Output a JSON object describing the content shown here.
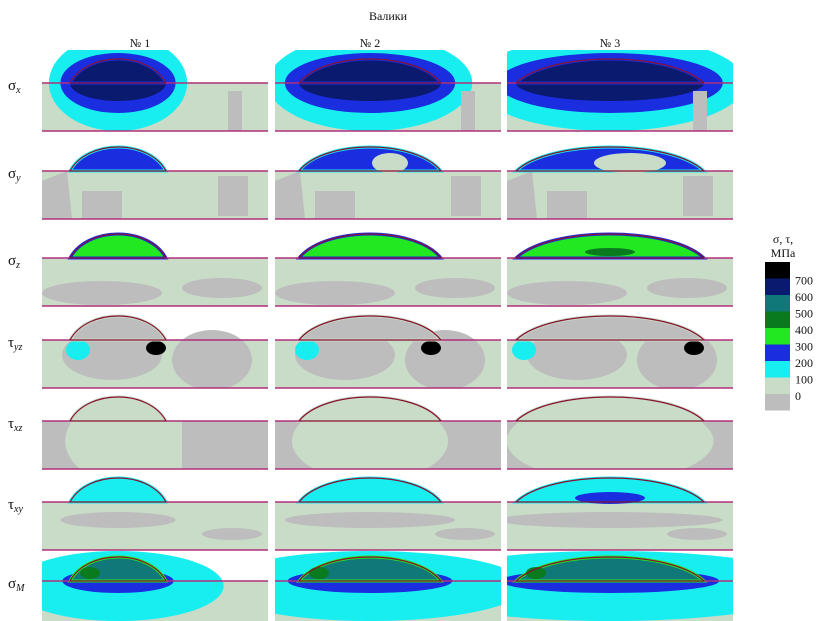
{
  "figure": {
    "title": "Валики",
    "columns": [
      "№ 1",
      "№ 2",
      "№ 3"
    ],
    "rows": [
      {
        "symbol": "σ",
        "sub": "x"
      },
      {
        "symbol": "σ",
        "sub": "y"
      },
      {
        "symbol": "σ",
        "sub": "z"
      },
      {
        "symbol": "τ",
        "sub": "yz"
      },
      {
        "symbol": "τ",
        "sub": "xz"
      },
      {
        "symbol": "τ",
        "sub": "xy"
      },
      {
        "symbol": "σ",
        "sub": "M"
      }
    ],
    "legend": {
      "title": [
        "σ, τ,",
        "МПа"
      ],
      "colors": [
        "#000000",
        "#0a1a6e",
        "#107878",
        "#0a7a1e",
        "#22e822",
        "#1a2ee0",
        "#18eef0",
        "#c8dcc8",
        "#bdbdbd"
      ],
      "labels": [
        700,
        600,
        500,
        400,
        300,
        200,
        100,
        0
      ]
    }
  }
}
